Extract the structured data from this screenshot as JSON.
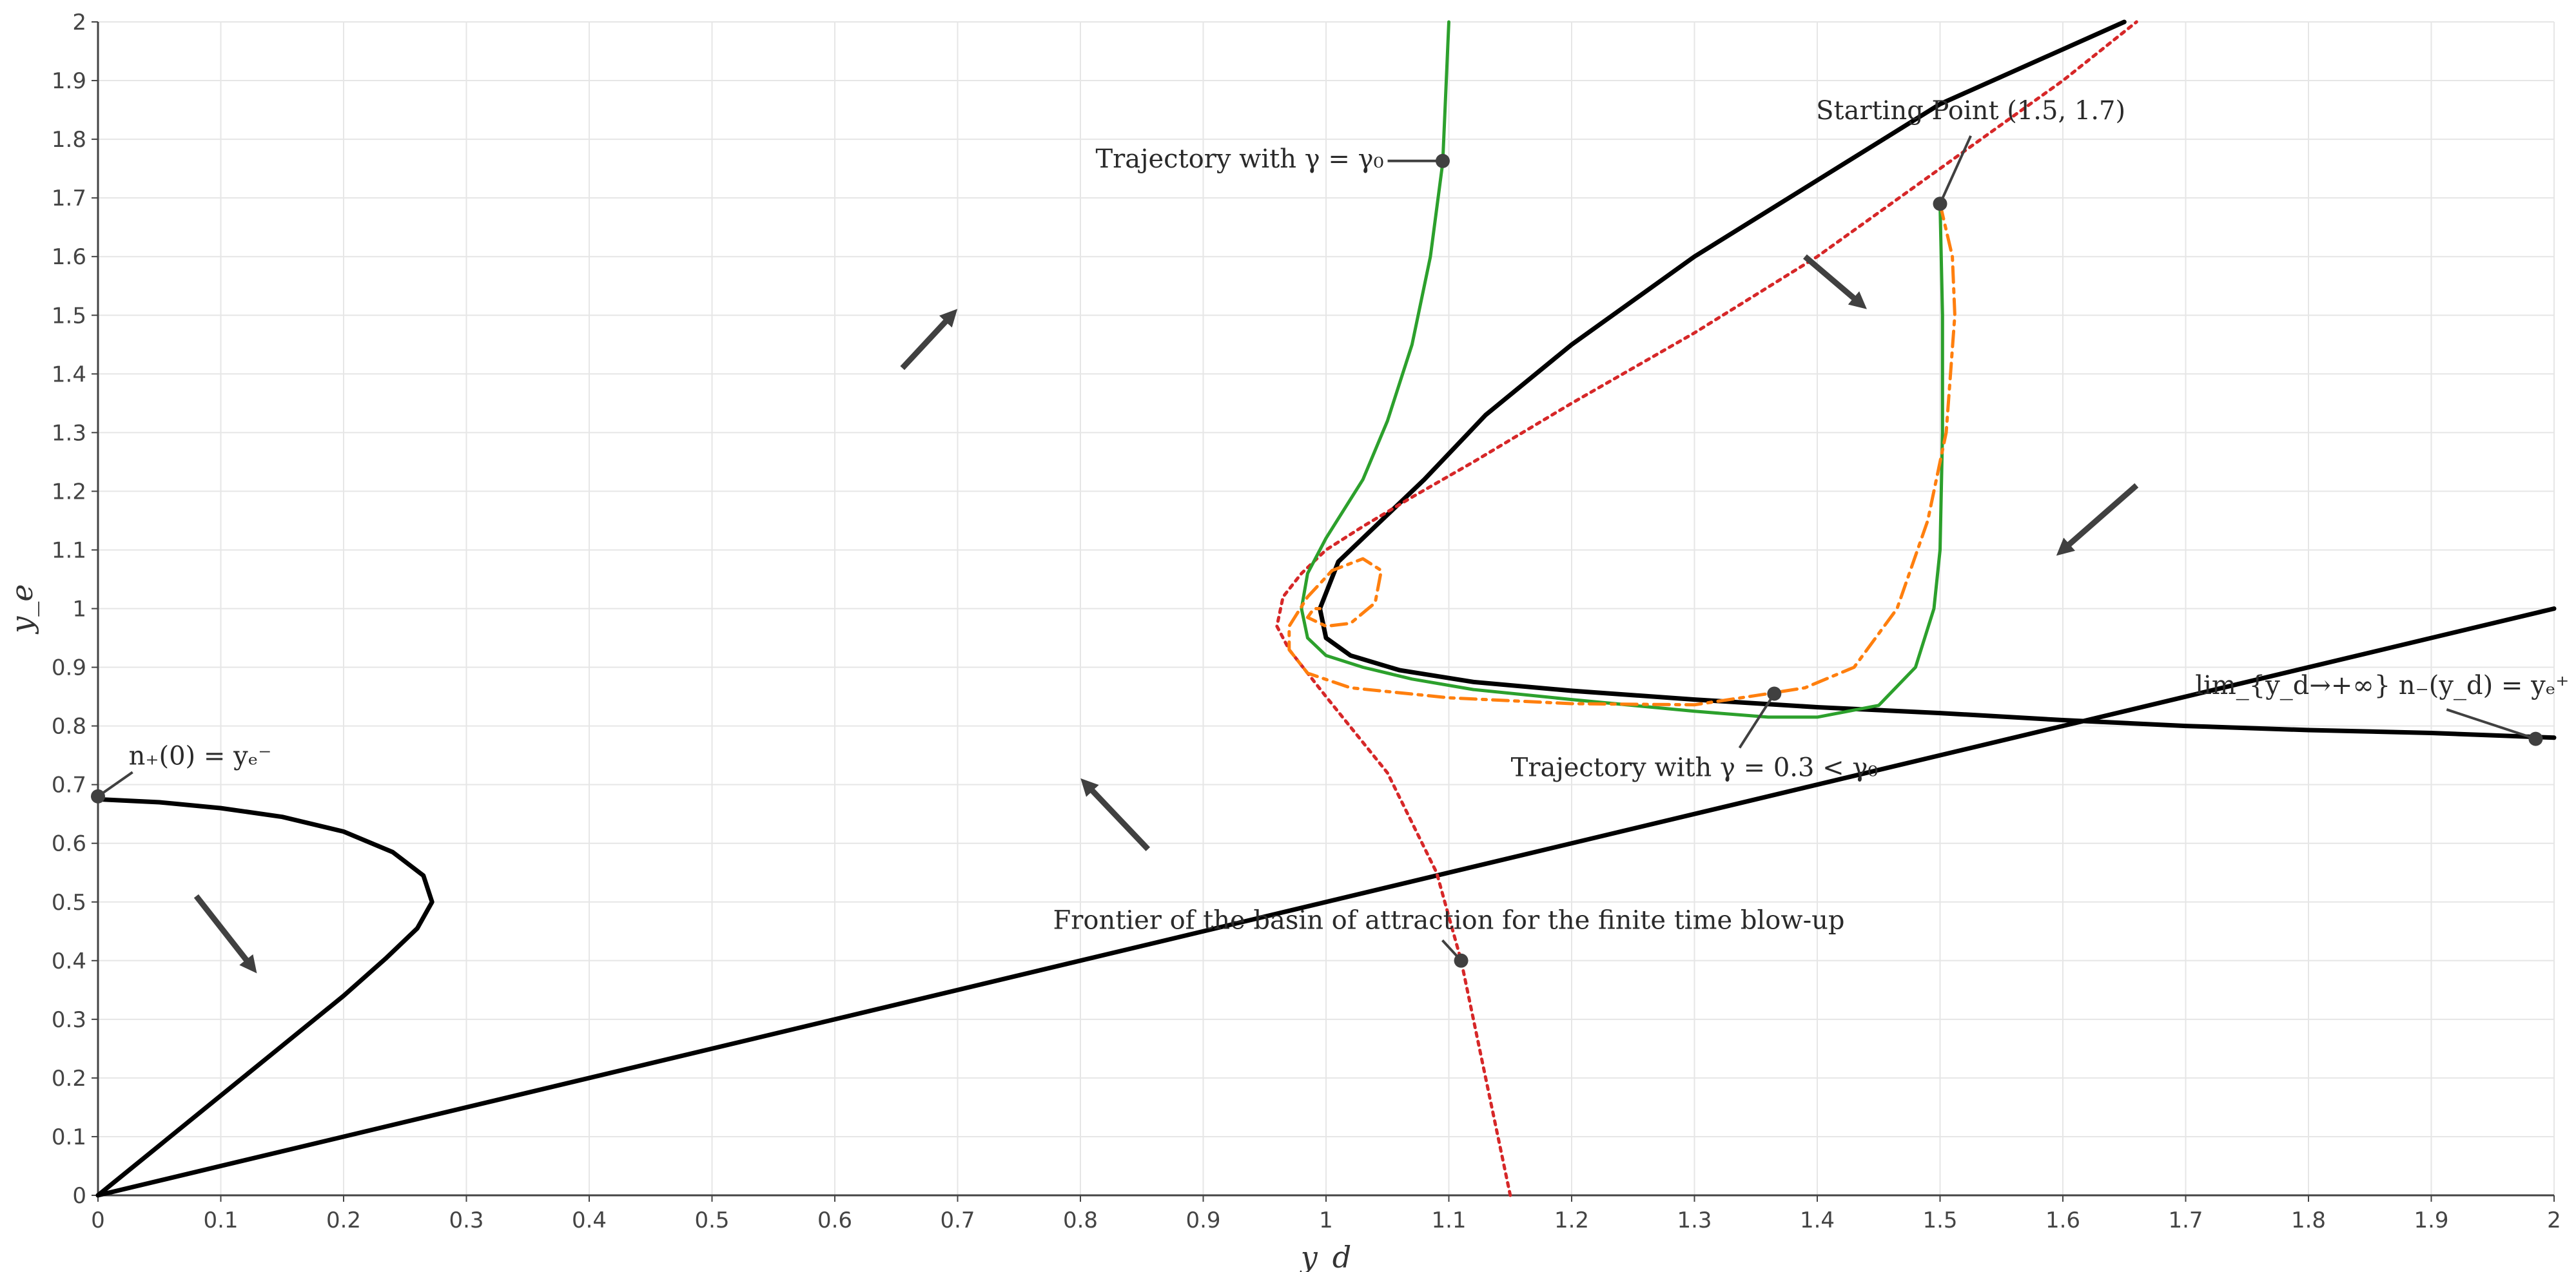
{
  "chart_data": {
    "type": "line",
    "xlabel": "y_d",
    "ylabel": "y_e",
    "xlim": [
      0,
      2
    ],
    "ylim": [
      0,
      2
    ],
    "x_ticks": [
      "0",
      "0.1",
      "0.2",
      "0.3",
      "0.4",
      "0.5",
      "0.6",
      "0.7",
      "0.8",
      "0.9",
      "1",
      "1.1",
      "1.2",
      "1.3",
      "1.4",
      "1.5",
      "1.6",
      "1.7",
      "1.8",
      "1.9",
      "2"
    ],
    "y_ticks": [
      "0",
      "0.1",
      "0.2",
      "0.3",
      "0.4",
      "0.5",
      "0.6",
      "0.7",
      "0.8",
      "0.9",
      "1",
      "1.1",
      "1.2",
      "1.3",
      "1.4",
      "1.5",
      "1.6",
      "1.7",
      "1.8",
      "1.9",
      "2"
    ],
    "grid": true,
    "legend": "none",
    "colors": {
      "nullcline": "#000000",
      "frontier": "#d62728",
      "trajectory_gamma0": "#2ca02c",
      "trajectory_gamma03": "#ff7f0e",
      "arrow": "#404040",
      "marker": "#404040"
    },
    "series": [
      {
        "style": "solid-black",
        "points": [
          [
            0,
            0
          ],
          [
            2,
            1
          ]
        ]
      },
      {
        "style": "solid-black",
        "points": [
          [
            0,
            0.675
          ],
          [
            0.05,
            0.67
          ],
          [
            0.1,
            0.66
          ],
          [
            0.15,
            0.645
          ],
          [
            0.2,
            0.62
          ],
          [
            0.24,
            0.585
          ],
          [
            0.265,
            0.545
          ],
          [
            0.272,
            0.5
          ],
          [
            0.26,
            0.455
          ],
          [
            0.235,
            0.405
          ],
          [
            0.2,
            0.34
          ],
          [
            0.15,
            0.255
          ],
          [
            0.1,
            0.17
          ],
          [
            0.05,
            0.085
          ],
          [
            0,
            0
          ]
        ]
      },
      {
        "style": "solid-black",
        "points": [
          [
            1.65,
            2
          ],
          [
            1.5,
            1.86
          ],
          [
            1.4,
            1.73
          ],
          [
            1.3,
            1.6
          ],
          [
            1.2,
            1.45
          ],
          [
            1.13,
            1.33
          ],
          [
            1.08,
            1.22
          ],
          [
            1.04,
            1.14
          ],
          [
            1.01,
            1.08
          ],
          [
            0.995,
            1.0
          ],
          [
            1.0,
            0.95
          ],
          [
            1.02,
            0.92
          ],
          [
            1.06,
            0.895
          ],
          [
            1.12,
            0.875
          ],
          [
            1.2,
            0.86
          ],
          [
            1.3,
            0.845
          ],
          [
            1.4,
            0.832
          ],
          [
            1.5,
            0.822
          ],
          [
            1.6,
            0.81
          ],
          [
            1.7,
            0.8
          ],
          [
            1.8,
            0.793
          ],
          [
            1.9,
            0.788
          ],
          [
            2,
            0.78
          ]
        ]
      },
      {
        "style": "dotted-red",
        "points": [
          [
            1.15,
            0
          ],
          [
            1.14,
            0.1
          ],
          [
            1.125,
            0.25
          ],
          [
            1.11,
            0.4
          ],
          [
            1.09,
            0.55
          ],
          [
            1.05,
            0.72
          ],
          [
            1.0,
            0.85
          ],
          [
            0.97,
            0.93
          ],
          [
            0.96,
            0.97
          ],
          [
            0.965,
            1.02
          ],
          [
            0.98,
            1.06
          ],
          [
            1.0,
            1.1
          ],
          [
            1.03,
            1.14
          ],
          [
            1.07,
            1.19
          ],
          [
            1.12,
            1.25
          ],
          [
            1.2,
            1.35
          ],
          [
            1.3,
            1.47
          ],
          [
            1.4,
            1.6
          ],
          [
            1.5,
            1.75
          ],
          [
            1.6,
            1.9
          ],
          [
            1.66,
            2
          ]
        ]
      },
      {
        "style": "solid-green",
        "points": [
          [
            1.1,
            2
          ],
          [
            1.095,
            1.76
          ],
          [
            1.085,
            1.6
          ],
          [
            1.07,
            1.45
          ],
          [
            1.05,
            1.32
          ],
          [
            1.03,
            1.22
          ],
          [
            1.0,
            1.12
          ],
          [
            0.985,
            1.06
          ],
          [
            0.98,
            1.0
          ],
          [
            0.985,
            0.95
          ],
          [
            1.0,
            0.92
          ],
          [
            1.03,
            0.9
          ],
          [
            1.07,
            0.88
          ],
          [
            1.12,
            0.862
          ],
          [
            1.2,
            0.845
          ],
          [
            1.3,
            0.825
          ],
          [
            1.36,
            0.815
          ],
          [
            1.4,
            0.815
          ],
          [
            1.45,
            0.835
          ],
          [
            1.48,
            0.9
          ],
          [
            1.495,
            1.0
          ],
          [
            1.5,
            1.1
          ],
          [
            1.502,
            1.3
          ],
          [
            1.502,
            1.5
          ],
          [
            1.5,
            1.69
          ]
        ]
      },
      {
        "style": "dashdot-orange",
        "points": [
          [
            1.5,
            1.69
          ],
          [
            1.51,
            1.6
          ],
          [
            1.512,
            1.5
          ],
          [
            1.505,
            1.3
          ],
          [
            1.49,
            1.15
          ],
          [
            1.465,
            1.0
          ],
          [
            1.43,
            0.9
          ],
          [
            1.39,
            0.865
          ],
          [
            1.36,
            0.855
          ],
          [
            1.3,
            0.836
          ],
          [
            1.2,
            0.838
          ],
          [
            1.1,
            0.848
          ],
          [
            1.02,
            0.865
          ],
          [
            0.985,
            0.89
          ],
          [
            0.97,
            0.93
          ],
          [
            0.97,
            0.97
          ],
          [
            0.985,
            1.02
          ],
          [
            1.005,
            1.065
          ],
          [
            1.03,
            1.085
          ],
          [
            1.045,
            1.065
          ],
          [
            1.04,
            1.01
          ],
          [
            1.02,
            0.975
          ],
          [
            1.0,
            0.97
          ],
          [
            0.985,
            0.985
          ],
          [
            0.99,
            1.0
          ],
          [
            1.0,
            1.0
          ]
        ]
      }
    ],
    "vector_arrows": [
      {
        "from": [
          0.655,
          1.41
        ],
        "to": [
          0.695,
          1.5
        ]
      },
      {
        "from": [
          1.39,
          1.6
        ],
        "to": [
          1.435,
          1.52
        ]
      },
      {
        "from": [
          1.66,
          1.21
        ],
        "to": [
          1.6,
          1.1
        ]
      },
      {
        "from": [
          0.855,
          0.59
        ],
        "to": [
          0.805,
          0.7
        ]
      },
      {
        "from": [
          0.08,
          0.51
        ],
        "to": [
          0.125,
          0.39
        ]
      }
    ],
    "annotations": [
      {
        "id": "n-plus",
        "text": "n₊(0) = yₑ⁻",
        "point": [
          0,
          0.68
        ],
        "text_at": [
          0.025,
          0.73
        ],
        "anchor": "start"
      },
      {
        "id": "traj-gamma0",
        "text": "Trajectory with γ = γ₀",
        "point": [
          1.095,
          1.763
        ],
        "text_at": [
          1.047,
          1.763
        ],
        "anchor": "end"
      },
      {
        "id": "starting-point",
        "text": "Starting Point (1.5, 1.7)",
        "point": [
          1.5,
          1.69
        ],
        "text_at": [
          1.525,
          1.83
        ],
        "anchor": "middle"
      },
      {
        "id": "limit",
        "text": "lim_{y_d→+∞} n₋(y_d) = yₑ⁺",
        "point": [
          1.985,
          0.778
        ],
        "text_at": [
          1.86,
          0.85
        ],
        "anchor": "middle"
      },
      {
        "id": "traj-gamma03",
        "text": "Trajectory with γ = 0.3 < γ₀",
        "point": [
          1.365,
          0.855
        ],
        "text_at": [
          1.3,
          0.71
        ],
        "anchor": "middle"
      },
      {
        "id": "frontier",
        "text": "Frontier of the basin of attraction for the finite time blow-up",
        "point": [
          1.11,
          0.4
        ],
        "text_at": [
          1.1,
          0.45
        ],
        "anchor": "middle"
      }
    ]
  }
}
